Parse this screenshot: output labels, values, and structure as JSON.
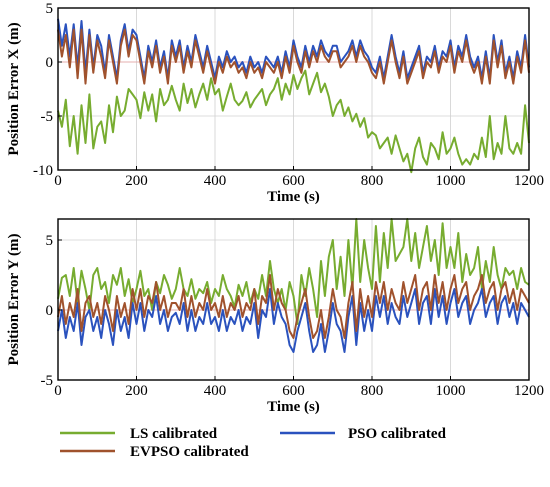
{
  "chart_data": [
    {
      "type": "line",
      "xlabel": "Time (s)",
      "ylabel": "Position Error X (m)",
      "xlim": [
        0,
        1200
      ],
      "ylim": [
        -10,
        5
      ],
      "xticks": [
        0,
        200,
        400,
        600,
        800,
        1000,
        1200
      ],
      "yticks": [
        -10,
        -5,
        0,
        5
      ],
      "grid": true,
      "x": [
        0,
        10,
        20,
        30,
        40,
        50,
        60,
        70,
        80,
        90,
        100,
        110,
        120,
        130,
        140,
        150,
        160,
        170,
        180,
        190,
        200,
        210,
        220,
        230,
        240,
        250,
        260,
        270,
        280,
        290,
        300,
        310,
        320,
        330,
        340,
        350,
        360,
        370,
        380,
        390,
        400,
        410,
        420,
        430,
        440,
        450,
        460,
        470,
        480,
        490,
        500,
        510,
        520,
        530,
        540,
        550,
        560,
        570,
        580,
        590,
        600,
        610,
        620,
        630,
        640,
        650,
        660,
        670,
        680,
        690,
        700,
        710,
        720,
        730,
        740,
        750,
        760,
        770,
        780,
        790,
        800,
        810,
        820,
        830,
        840,
        850,
        860,
        870,
        880,
        890,
        900,
        910,
        920,
        930,
        940,
        950,
        960,
        970,
        980,
        990,
        1000,
        1010,
        1020,
        1030,
        1040,
        1050,
        1060,
        1070,
        1080,
        1090,
        1100,
        1110,
        1120,
        1130,
        1140,
        1150,
        1160,
        1170,
        1180,
        1190,
        1200
      ],
      "series": [
        {
          "name": "LS calibrated",
          "color": "#77ac30",
          "values": [
            -4.5,
            -6.0,
            -3.5,
            -7.8,
            -5.0,
            -8.5,
            -4.0,
            -7.5,
            -3.0,
            -8.0,
            -6.0,
            -5.5,
            -7.5,
            -4.0,
            -6.5,
            -3.2,
            -5.0,
            -4.5,
            -2.5,
            -3.0,
            -3.5,
            -5.2,
            -2.8,
            -4.5,
            -3.0,
            -5.5,
            -2.5,
            -4.0,
            -3.5,
            -2.2,
            -3.5,
            -4.5,
            -2.0,
            -3.8,
            -2.5,
            -4.2,
            -3.0,
            -2.0,
            -3.5,
            -1.5,
            -3.0,
            -2.5,
            -4.5,
            -3.2,
            -2.0,
            -3.5,
            -4.0,
            -3.6,
            -2.8,
            -4.2,
            -3.5,
            -3.0,
            -2.5,
            -4.0,
            -3.0,
            -2.5,
            -1.5,
            -3.5,
            -2.0,
            -3.0,
            -1.2,
            -2.5,
            -1.5,
            -0.8,
            -3.0,
            -2.0,
            -1.0,
            -2.8,
            -2.0,
            -3.2,
            -5.0,
            -4.0,
            -3.5,
            -5.0,
            -4.2,
            -5.5,
            -4.8,
            -6.0,
            -5.2,
            -7.0,
            -6.5,
            -6.8,
            -8.0,
            -7.5,
            -7.0,
            -8.5,
            -6.8,
            -8.0,
            -9.2,
            -8.5,
            -10.2,
            -8.0,
            -7.0,
            -8.8,
            -9.5,
            -7.5,
            -8.0,
            -9.0,
            -6.5,
            -8.5,
            -8.0,
            -7.0,
            -8.5,
            -9.5,
            -9.0,
            -9.5,
            -8.5,
            -9.0,
            -7.0,
            -8.8,
            -5.0,
            -9.0,
            -7.5,
            -8.5,
            -5.0,
            -8.0,
            -8.5,
            -7.5,
            -8.5,
            -4.0,
            -7.5
          ]
        },
        {
          "name": "PSO calibrated",
          "color": "#2a52be",
          "values": [
            4.0,
            1.5,
            3.5,
            0.5,
            3.5,
            -0.5,
            3.8,
            -1.0,
            3.0,
            -0.5,
            2.5,
            1.5,
            -1.0,
            2.5,
            0.5,
            -1.5,
            2.0,
            3.5,
            1.0,
            3.0,
            2.5,
            0.5,
            -1.5,
            1.5,
            0.0,
            2.0,
            -0.5,
            1.0,
            -1.5,
            2.0,
            0.5,
            2.0,
            -0.5,
            1.5,
            0.0,
            2.5,
            1.0,
            -0.5,
            1.5,
            0.0,
            -1.5,
            0.5,
            -0.5,
            1.0,
            0.0,
            0.5,
            -0.5,
            0.0,
            -1.0,
            0.5,
            -0.5,
            0.0,
            -1.0,
            0.5,
            0.0,
            -0.5,
            0.5,
            -1.0,
            1.0,
            -0.5,
            2.0,
            0.5,
            -0.5,
            1.5,
            0.0,
            1.5,
            0.5,
            2.0,
            1.0,
            0.5,
            1.5,
            1.5,
            0.0,
            0.5,
            1.0,
            2.0,
            0.5,
            2.0,
            1.0,
            0.5,
            -0.5,
            -1.0,
            0.5,
            -1.5,
            0.5,
            2.5,
            0.5,
            -1.0,
            1.0,
            -1.5,
            -0.5,
            0.5,
            1.5,
            -1.0,
            0.5,
            0.0,
            1.5,
            -0.5,
            1.0,
            0.5,
            2.0,
            -0.5,
            1.5,
            0.5,
            2.5,
            0.5,
            -0.5,
            0.5,
            -1.5,
            1.0,
            -1.5,
            2.5,
            0.0,
            2.0,
            -1.0,
            0.5,
            -1.5,
            1.0,
            -0.5,
            2.5,
            -0.5
          ]
        },
        {
          "name": "EVPSO calibrated",
          "color": "#a0522d",
          "values": [
            3.0,
            0.5,
            2.5,
            -0.5,
            3.0,
            -1.5,
            3.0,
            -2.0,
            2.5,
            -1.0,
            2.0,
            0.5,
            -1.5,
            2.0,
            0.0,
            -2.0,
            1.5,
            3.0,
            0.5,
            2.5,
            2.0,
            0.0,
            -2.0,
            1.0,
            -0.5,
            1.5,
            -1.0,
            0.5,
            -2.0,
            1.5,
            0.0,
            1.5,
            -1.0,
            1.0,
            -0.5,
            2.0,
            0.5,
            -1.0,
            1.0,
            -0.5,
            -2.0,
            0.0,
            -1.0,
            0.5,
            -0.5,
            0.0,
            -1.0,
            -0.5,
            -1.5,
            0.0,
            -1.0,
            -0.5,
            -1.5,
            0.0,
            -0.5,
            -1.0,
            0.0,
            -1.5,
            0.5,
            -1.0,
            1.5,
            0.0,
            -1.0,
            1.0,
            -0.5,
            1.0,
            0.0,
            1.5,
            0.5,
            0.0,
            1.0,
            1.0,
            -0.5,
            0.0,
            0.5,
            1.5,
            0.0,
            1.5,
            0.5,
            0.0,
            -1.0,
            -1.5,
            0.0,
            -2.0,
            0.0,
            2.0,
            0.0,
            -1.5,
            0.5,
            -2.0,
            -1.0,
            0.0,
            1.0,
            -1.5,
            0.0,
            -0.5,
            1.0,
            -1.0,
            0.5,
            0.0,
            1.5,
            -1.0,
            1.0,
            0.0,
            2.0,
            0.0,
            -1.0,
            0.0,
            -2.0,
            0.5,
            -2.0,
            2.0,
            -0.5,
            1.5,
            -1.5,
            0.0,
            -2.0,
            0.5,
            -1.0,
            2.0,
            -1.0
          ]
        }
      ]
    },
    {
      "type": "line",
      "xlabel": "Time (s)",
      "ylabel": "Position Error Y (m)",
      "xlim": [
        0,
        1200
      ],
      "ylim": [
        -5,
        6.5
      ],
      "xticks": [
        0,
        200,
        400,
        600,
        800,
        1000,
        1200
      ],
      "yticks": [
        -5,
        0,
        5
      ],
      "grid": true,
      "x": [
        0,
        10,
        20,
        30,
        40,
        50,
        60,
        70,
        80,
        90,
        100,
        110,
        120,
        130,
        140,
        150,
        160,
        170,
        180,
        190,
        200,
        210,
        220,
        230,
        240,
        250,
        260,
        270,
        280,
        290,
        300,
        310,
        320,
        330,
        340,
        350,
        360,
        370,
        380,
        390,
        400,
        410,
        420,
        430,
        440,
        450,
        460,
        470,
        480,
        490,
        500,
        510,
        520,
        530,
        540,
        550,
        560,
        570,
        580,
        590,
        600,
        610,
        620,
        630,
        640,
        650,
        660,
        670,
        680,
        690,
        700,
        710,
        720,
        730,
        740,
        750,
        760,
        770,
        780,
        790,
        800,
        810,
        820,
        830,
        840,
        850,
        860,
        870,
        880,
        890,
        900,
        910,
        920,
        930,
        940,
        950,
        960,
        970,
        980,
        990,
        1000,
        1010,
        1020,
        1030,
        1040,
        1050,
        1060,
        1070,
        1080,
        1090,
        1100,
        1110,
        1120,
        1130,
        1140,
        1150,
        1160,
        1170,
        1180,
        1190,
        1200
      ],
      "series": [
        {
          "name": "LS calibrated",
          "color": "#77ac30",
          "values": [
            0.8,
            2.3,
            2.5,
            1.0,
            3.0,
            0.5,
            2.8,
            1.5,
            0.0,
            2.5,
            3.0,
            1.5,
            2.0,
            0.5,
            2.5,
            1.8,
            3.0,
            1.0,
            2.2,
            0.5,
            1.5,
            2.8,
            1.0,
            1.5,
            0.0,
            2.0,
            1.2,
            2.5,
            1.8,
            0.8,
            1.5,
            3.0,
            1.5,
            1.0,
            2.2,
            0.8,
            1.5,
            1.2,
            2.0,
            0.5,
            1.5,
            1.0,
            2.5,
            1.5,
            1.0,
            0.2,
            1.8,
            1.0,
            2.0,
            0.5,
            1.5,
            0.8,
            2.5,
            1.0,
            3.5,
            1.5,
            0.5,
            1.5,
            0.0,
            2.0,
            1.0,
            -1.0,
            2.5,
            1.0,
            3.0,
            1.5,
            -0.5,
            3.5,
            1.0,
            3.8,
            5.0,
            1.5,
            3.8,
            1.0,
            5.0,
            1.5,
            6.5,
            2.0,
            5.0,
            3.0,
            1.5,
            6.0,
            2.0,
            5.5,
            3.0,
            6.5,
            3.5,
            4.0,
            4.5,
            6.5,
            3.5,
            5.5,
            3.0,
            4.5,
            6.0,
            3.5,
            5.0,
            2.5,
            6.2,
            3.0,
            4.5,
            3.0,
            5.5,
            2.0,
            4.0,
            2.5,
            3.0,
            4.5,
            1.5,
            3.5,
            2.0,
            4.5,
            2.5,
            1.5,
            3.0,
            2.5,
            2.8,
            1.5,
            3.0,
            2.0,
            1.8
          ]
        },
        {
          "name": "PSO calibrated",
          "color": "#2a52be",
          "values": [
            -1.5,
            0.0,
            -2.0,
            -0.5,
            -1.5,
            0.5,
            -2.5,
            -0.5,
            0.0,
            -1.5,
            -0.5,
            -2.0,
            0.0,
            -1.0,
            -2.5,
            0.0,
            -1.5,
            -0.5,
            -2.0,
            0.5,
            -1.0,
            0.5,
            -1.5,
            0.0,
            -0.5,
            1.0,
            -1.0,
            0.0,
            -1.5,
            -0.5,
            -0.2,
            -1.0,
            0.5,
            -1.5,
            0.0,
            -1.5,
            -0.5,
            -1.0,
            0.5,
            -1.0,
            -0.5,
            -1.5,
            0.0,
            -1.5,
            -0.5,
            -1.0,
            0.0,
            -1.5,
            -0.5,
            -1.0,
            0.5,
            -2.0,
            0.0,
            -0.5,
            1.5,
            -1.0,
            0.5,
            -0.5,
            -1.0,
            -2.5,
            -3.0,
            -1.5,
            -0.5,
            0.5,
            -1.5,
            -3.0,
            -2.5,
            -1.0,
            -3.0,
            -1.5,
            0.5,
            -1.0,
            -1.5,
            -3.0,
            -0.5,
            1.0,
            -2.5,
            0.5,
            -1.5,
            0.0,
            -1.5,
            1.0,
            -0.5,
            1.0,
            -1.0,
            0.5,
            -0.5,
            -1.0,
            1.0,
            -0.5,
            0.5,
            1.5,
            -1.0,
            0.5,
            1.0,
            -1.0,
            1.5,
            -0.5,
            1.0,
            -1.0,
            0.5,
            1.5,
            -0.5,
            0.5,
            1.0,
            -1.0,
            0.0,
            0.5,
            1.5,
            -0.5,
            0.5,
            1.0,
            -1.0,
            0.5,
            1.0,
            -0.5,
            0.5,
            -1.0,
            0.5,
            0.0,
            -0.5
          ]
        },
        {
          "name": "EVPSO calibrated",
          "color": "#a0522d",
          "values": [
            -0.5,
            1.0,
            -1.0,
            0.5,
            -0.5,
            1.5,
            -1.5,
            0.5,
            1.0,
            -0.5,
            0.5,
            -1.0,
            1.0,
            0.0,
            -1.5,
            1.0,
            -0.5,
            0.5,
            -1.0,
            1.5,
            0.0,
            1.5,
            -0.5,
            1.0,
            0.5,
            2.0,
            0.0,
            1.0,
            -0.5,
            0.5,
            0.5,
            0.0,
            1.5,
            -0.5,
            1.0,
            -0.5,
            0.5,
            0.0,
            1.5,
            0.0,
            0.5,
            -0.5,
            1.0,
            -0.5,
            0.5,
            0.0,
            1.0,
            -0.5,
            0.5,
            0.0,
            1.5,
            -1.0,
            1.0,
            0.5,
            2.5,
            0.0,
            1.5,
            0.5,
            0.0,
            -1.5,
            -2.0,
            -0.5,
            0.5,
            1.5,
            -0.5,
            -2.0,
            -1.5,
            0.0,
            -2.0,
            -0.5,
            1.5,
            0.0,
            -0.5,
            -2.0,
            0.5,
            2.0,
            -1.5,
            1.5,
            -0.5,
            1.0,
            -0.5,
            2.0,
            0.5,
            2.0,
            0.0,
            1.5,
            0.5,
            0.0,
            2.0,
            0.5,
            1.5,
            2.5,
            0.0,
            1.5,
            2.0,
            0.0,
            2.5,
            0.5,
            2.0,
            0.0,
            1.5,
            2.5,
            0.5,
            1.5,
            2.0,
            0.0,
            1.0,
            1.5,
            2.5,
            0.5,
            1.5,
            2.0,
            0.0,
            1.5,
            2.0,
            0.5,
            1.5,
            0.0,
            1.5,
            1.0,
            0.5
          ]
        }
      ]
    }
  ],
  "legend": {
    "placement": "bottom",
    "items": [
      {
        "label": "LS calibrated",
        "color": "#77ac30"
      },
      {
        "label": "PSO calibrated",
        "color": "#2a52be"
      },
      {
        "label": "EVPSO calibrated",
        "color": "#a0522d"
      }
    ]
  }
}
